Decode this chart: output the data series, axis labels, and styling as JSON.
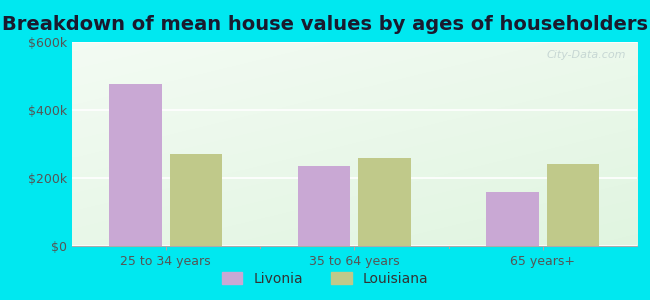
{
  "title": "Breakdown of mean house values by ages of householders",
  "categories": [
    "25 to 34 years",
    "35 to 64 years",
    "65 years+"
  ],
  "livonia_values": [
    475000,
    235000,
    160000
  ],
  "louisiana_values": [
    270000,
    260000,
    240000
  ],
  "livonia_color": "#c9a8d4",
  "louisiana_color": "#c0c98a",
  "ylim": [
    0,
    600000
  ],
  "yticks": [
    0,
    200000,
    400000,
    600000
  ],
  "ytick_labels": [
    "$0",
    "$200k",
    "$400k",
    "$600k"
  ],
  "legend_labels": [
    "Livonia",
    "Louisiana"
  ],
  "background_outer": "#00e8f0",
  "watermark": "City-Data.com",
  "title_fontsize": 14,
  "tick_fontsize": 9,
  "legend_fontsize": 10,
  "bar_width": 0.28,
  "bar_gap": 0.04
}
